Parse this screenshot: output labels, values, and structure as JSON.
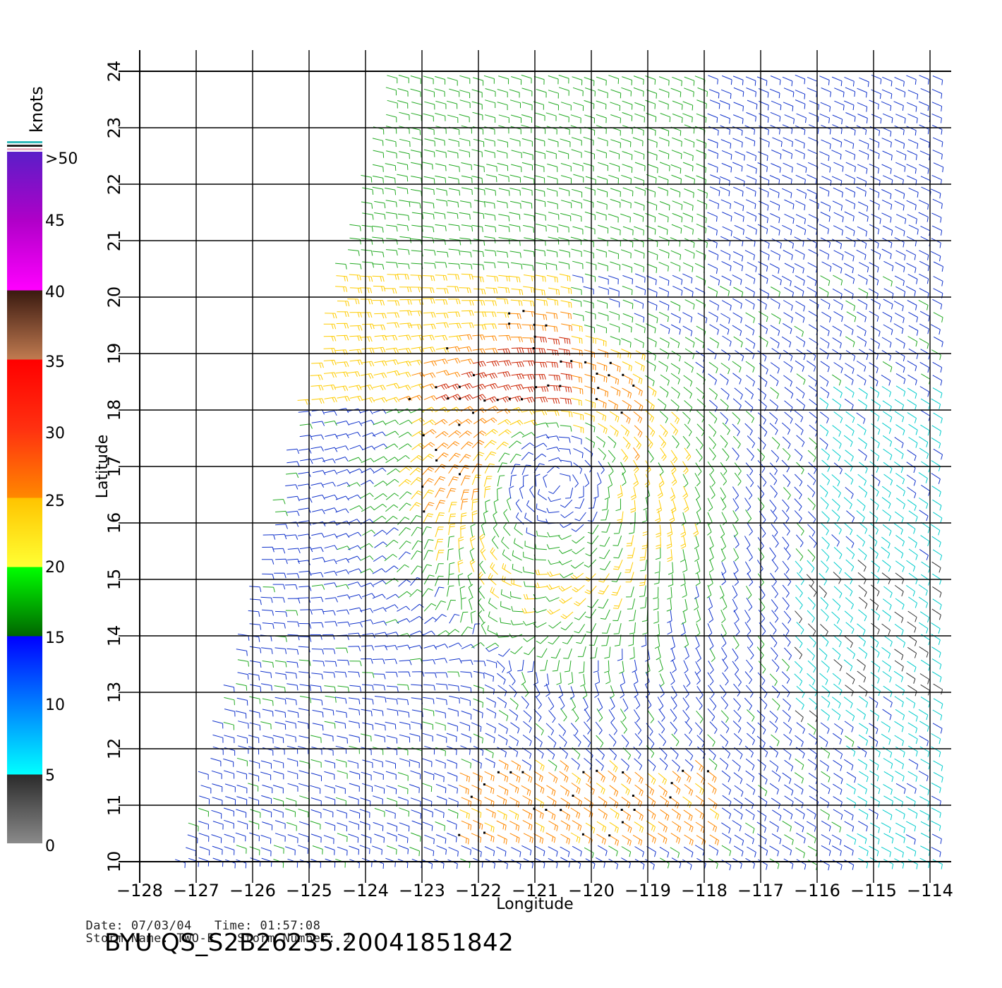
{
  "plot": {
    "x_axis_label": "Longitude",
    "y_axis_label": "Latitude",
    "x_ticks": [
      "-128",
      "-127",
      "-126",
      "-125",
      "-124",
      "-123",
      "-122",
      "-121",
      "-120",
      "-119",
      "-118",
      "-117",
      "-116",
      "-115",
      "-114"
    ],
    "y_ticks": [
      "10",
      "11",
      "12",
      "13",
      "14",
      "15",
      "16",
      "17",
      "18",
      "19",
      "20",
      "21",
      "22",
      "23",
      "24"
    ],
    "lon_range": [
      -128,
      -114
    ],
    "lat_range": [
      10,
      24
    ],
    "grid": true
  },
  "colorbar": {
    "unit": "knots",
    "labels": [
      ">50",
      "45",
      "40",
      "35",
      "30",
      "25",
      "20",
      "15",
      "10",
      "5",
      "0"
    ],
    "stops": [
      {
        "range": "0-5",
        "color_top": "#2b2b2b",
        "color_bottom": "#8a8a8a"
      },
      {
        "range": "5-15",
        "color_top": "#0000ff",
        "color_bottom": "#00ffff"
      },
      {
        "range": "15-20",
        "color_top": "#00ff00",
        "color_bottom": "#006600"
      },
      {
        "range": "20-25",
        "color_top": "#ffcc00",
        "color_bottom": "#ffff33"
      },
      {
        "range": "25-35",
        "color_top": "#ff0000",
        "color_bottom": "#ff8800"
      },
      {
        "range": "35-40",
        "color_top": "#3a1a10",
        "color_bottom": "#c07a50"
      },
      {
        "range": "40-50",
        "color_top": "#5a20c0",
        "color_bottom": "#ff00ff"
      }
    ]
  },
  "wind_field": {
    "storm_center": {
      "lon": -120.6,
      "lat": 16.7
    },
    "strong_band_color": "#cc2200",
    "moderate_color": "#ffcc00",
    "light_color": "#22aa22",
    "weak_color": "#1133cc",
    "calm_color": "#00cccc",
    "very_calm_color": "#333333"
  },
  "info": {
    "date_label": "Date:",
    "date": "07/03/04",
    "time_label": "Time:",
    "time": "01:57:08",
    "storm_name_label": "Storm Name:",
    "storm_name": "TWO-E",
    "storm_number_label": "Storm Number:",
    "storm_number": "2"
  },
  "title": "BYU QS_S2B26235.20041851842"
}
